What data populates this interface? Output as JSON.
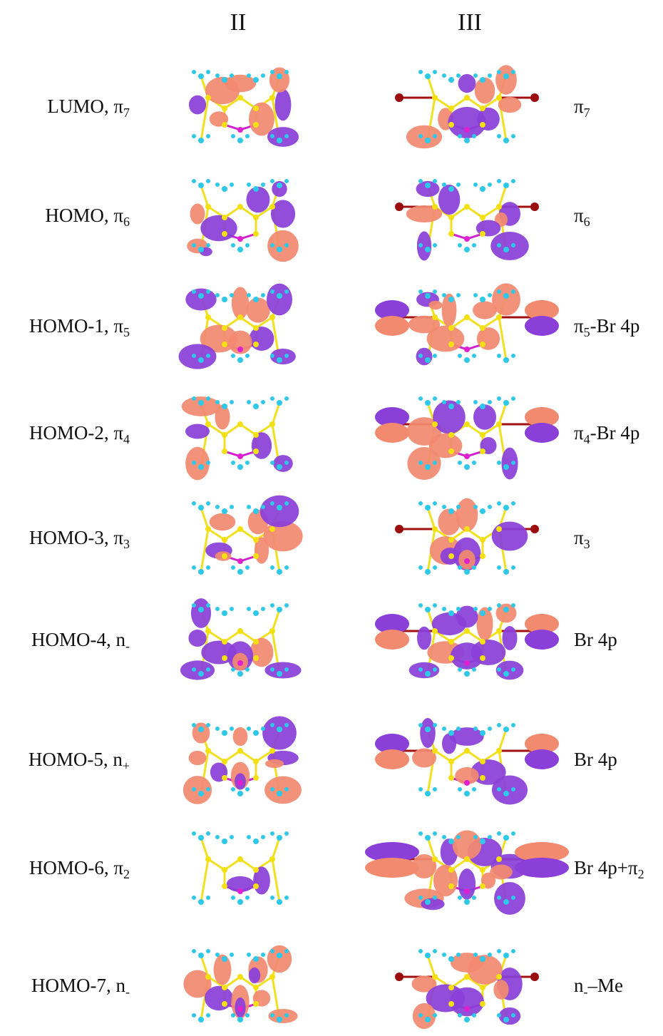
{
  "columns": [
    "II",
    "III"
  ],
  "rows": [
    {
      "left": {
        "text": "LUMO, π",
        "sub": "7"
      },
      "right": {
        "text": "π",
        "sub": "7"
      }
    },
    {
      "left": {
        "text": "HOMO, π",
        "sub": "6"
      },
      "right": {
        "text": "π",
        "sub": "6"
      }
    },
    {
      "left": {
        "text": "HOMO-1, π",
        "sub": "5"
      },
      "right": {
        "text": "π",
        "sub": "5",
        "after": "-Br 4p"
      }
    },
    {
      "left": {
        "text": "HOMO-2, π",
        "sub": "4"
      },
      "right": {
        "text": "π",
        "sub": "4",
        "after": "-Br 4p"
      }
    },
    {
      "left": {
        "text": "HOMO-3, π",
        "sub": "3"
      },
      "right": {
        "text": "π",
        "sub": "3"
      }
    },
    {
      "left": {
        "text": "HOMO-4, n",
        "sub": "-"
      },
      "right": {
        "text": "Br 4p"
      }
    },
    {
      "left": {
        "text": "HOMO-5, n",
        "sub": "+"
      },
      "right": {
        "text": "Br 4p"
      }
    },
    {
      "left": {
        "text": "HOMO-6, π",
        "sub": "2"
      },
      "right": {
        "text": "Br 4p+π",
        "sub": "2"
      }
    },
    {
      "left": {
        "text": "HOMO-7, n",
        "sub": "-"
      },
      "right": {
        "text": "n",
        "sub": "-",
        "after": "–Me"
      }
    }
  ]
}
